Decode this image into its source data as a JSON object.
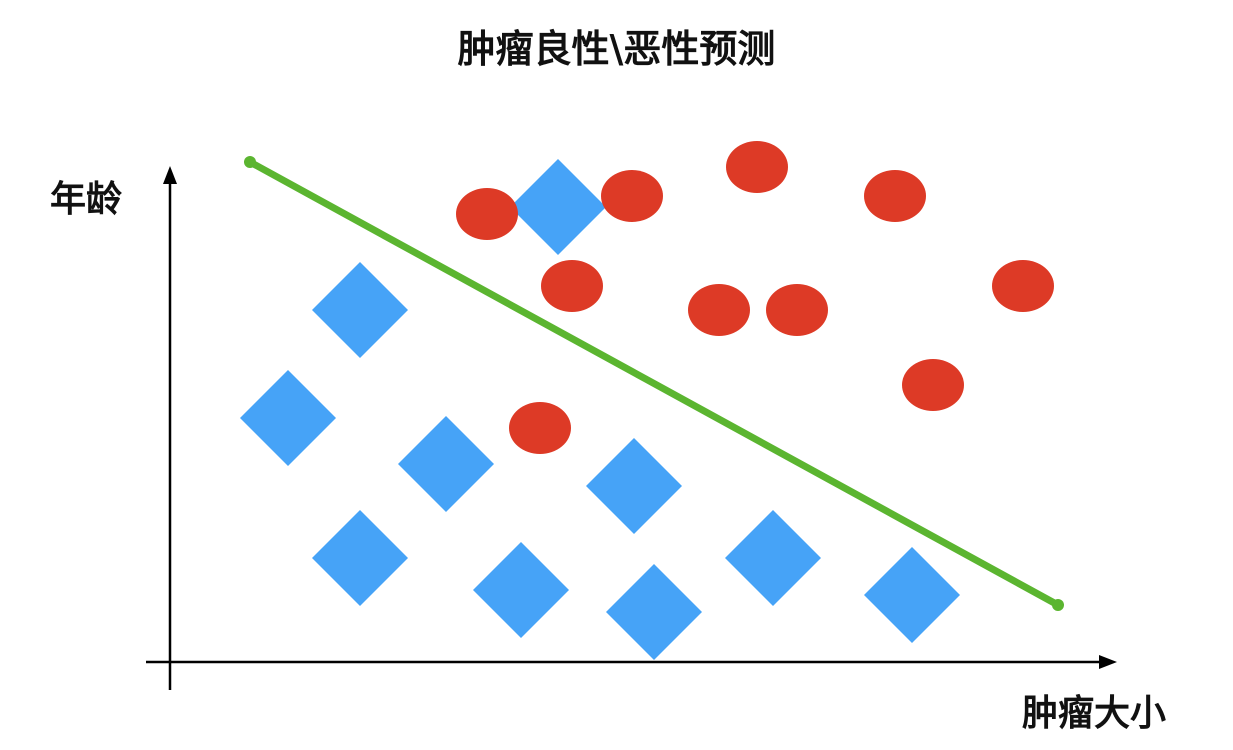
{
  "title": "肿瘤良性\\恶性预测",
  "y_axis_label": "年龄",
  "x_axis_label": "肿瘤大小",
  "colors": {
    "benign": "#46a3f7",
    "malignant": "#dd3a26",
    "boundary": "#5bb530",
    "axis": "#000000"
  },
  "chart_data": {
    "type": "scatter",
    "xlabel": "肿瘤大小",
    "ylabel": "年龄",
    "series": [
      {
        "marker": "diamond",
        "color": "#46a3f7",
        "points": [
          [
            558,
            207
          ],
          [
            360,
            310
          ],
          [
            288,
            418
          ],
          [
            446,
            464
          ],
          [
            634,
            486
          ],
          [
            360,
            558
          ],
          [
            521,
            590
          ],
          [
            654,
            612
          ],
          [
            773,
            558
          ],
          [
            912,
            595
          ]
        ]
      },
      {
        "marker": "circle",
        "color": "#dd3a26",
        "points": [
          [
            487,
            214
          ],
          [
            632,
            196
          ],
          [
            757,
            167
          ],
          [
            895,
            196
          ],
          [
            572,
            286
          ],
          [
            719,
            310
          ],
          [
            797,
            310
          ],
          [
            1023,
            286
          ],
          [
            933,
            385
          ],
          [
            540,
            428
          ]
        ]
      }
    ],
    "boundary_line": {
      "x": [
        250,
        1058
      ],
      "y": [
        162,
        605
      ]
    },
    "axis_range": {
      "x": [
        170,
        1115
      ],
      "y": [
        662,
        168
      ]
    }
  }
}
